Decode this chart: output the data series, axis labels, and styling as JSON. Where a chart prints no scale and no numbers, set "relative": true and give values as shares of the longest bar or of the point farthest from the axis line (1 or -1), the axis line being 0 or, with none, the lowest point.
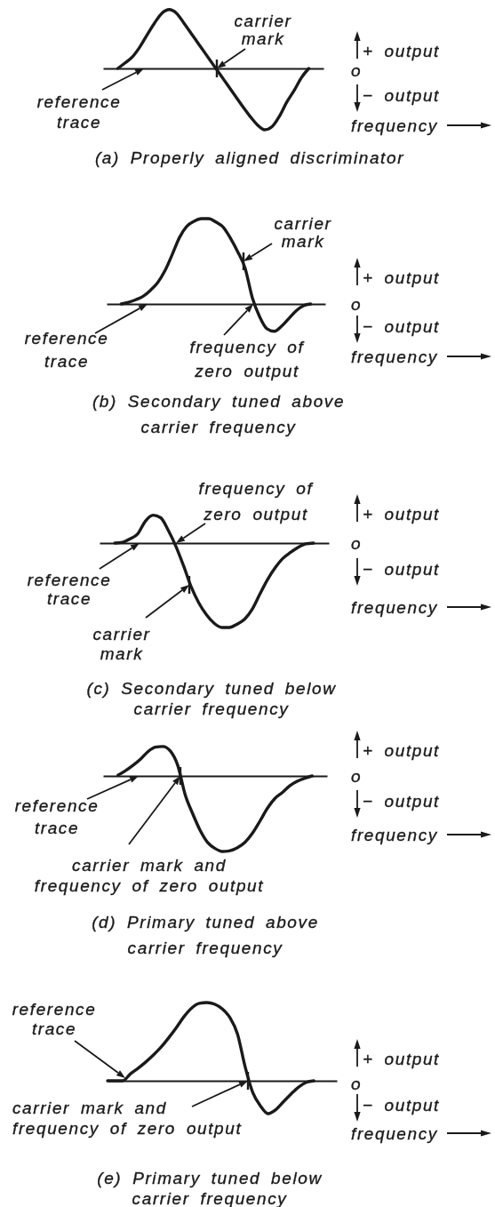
{
  "chart_data": [
    {
      "type": "line",
      "title": "(a) Properly aligned discriminator",
      "xlabel": "frequency",
      "relative": true,
      "color": "#1a1a1a",
      "categories": [
        null,
        null,
        null,
        null,
        null,
        null,
        null,
        null,
        null,
        null,
        null,
        null,
        null,
        null,
        null,
        null,
        null,
        null,
        null,
        null,
        null,
        null,
        null,
        null,
        null,
        null,
        null,
        null,
        null,
        null,
        null
      ],
      "values": [
        null,
        null,
        0,
        0.09,
        0.19,
        0.35,
        0.55,
        0.74,
        0.9,
        0.96,
        0.9,
        0.74,
        0.57,
        0.4,
        0.23,
        0.06,
        -0.11,
        -0.28,
        -0.45,
        -0.62,
        -0.78,
        -0.92,
        -1,
        -0.95,
        -0.78,
        -0.55,
        -0.36,
        -0.15,
        0,
        null,
        null
      ],
      "annotations": [
        "carrier mark",
        "reference trace",
        "+ output",
        "o",
        "− output"
      ]
    },
    {
      "type": "line",
      "title": "(b) Secondary tuned above carrier frequency",
      "xlabel": "frequency",
      "relative": true,
      "color": "#1a1a1a",
      "categories": [
        null,
        null,
        null,
        null,
        null,
        null,
        null,
        null,
        null,
        null,
        null,
        null,
        null,
        null,
        null,
        null,
        null,
        null,
        null,
        null,
        null,
        null,
        null,
        null,
        null,
        null,
        null,
        null,
        null,
        null,
        null
      ],
      "values": [
        null,
        null,
        0,
        0.02,
        0.05,
        0.09,
        0.16,
        0.25,
        0.39,
        0.58,
        0.78,
        0.91,
        0.97,
        1,
        1,
        0.96,
        0.9,
        0.77,
        0.61,
        0.42,
        0.07,
        -0.15,
        -0.29,
        -0.32,
        -0.26,
        -0.17,
        -0.08,
        -0.02,
        0,
        null,
        null
      ],
      "annotations": [
        "carrier mark",
        "reference trace",
        "frequency of zero output",
        "+ output",
        "o",
        "− output"
      ]
    },
    {
      "type": "line",
      "title": "(c) Secondary tuned below carrier frequency",
      "xlabel": "frequency",
      "relative": true,
      "color": "#1a1a1a",
      "categories": [
        null,
        null,
        null,
        null,
        null,
        null,
        null,
        null,
        null,
        null,
        null,
        null,
        null,
        null,
        null,
        null,
        null,
        null,
        null,
        null,
        null,
        null,
        null,
        null,
        null,
        null,
        null,
        null,
        null,
        null,
        null
      ],
      "values": [
        null,
        null,
        0,
        0.01,
        0.05,
        0.11,
        0.26,
        0.33,
        0.3,
        0.15,
        -0.04,
        -0.27,
        -0.52,
        -0.71,
        -0.85,
        -0.95,
        -1,
        -1,
        -0.96,
        -0.9,
        -0.78,
        -0.6,
        -0.43,
        -0.29,
        -0.18,
        -0.11,
        -0.05,
        -0.01,
        0,
        null,
        null
      ],
      "annotations": [
        "frequency of zero output",
        "reference trace",
        "carrier mark",
        "+ output",
        "o",
        "− output"
      ]
    },
    {
      "type": "line",
      "title": "(d) Primary tuned above carrier frequency",
      "xlabel": "frequency",
      "relative": true,
      "color": "#1a1a1a",
      "categories": [
        null,
        null,
        null,
        null,
        null,
        null,
        null,
        null,
        null,
        null,
        null,
        null,
        null,
        null,
        null,
        null,
        null,
        null,
        null,
        null,
        null,
        null,
        null,
        null,
        null,
        null,
        null,
        null,
        null,
        null,
        null
      ],
      "values": [
        null,
        null,
        0.01,
        0.07,
        0.14,
        0.22,
        0.32,
        0.38,
        0.39,
        0.33,
        0.14,
        -0.25,
        -0.5,
        -0.72,
        -0.88,
        -0.96,
        -1,
        -0.99,
        -0.95,
        -0.88,
        -0.76,
        -0.6,
        -0.43,
        -0.3,
        -0.22,
        -0.13,
        -0.07,
        -0.03,
        0,
        null,
        null
      ],
      "annotations": [
        "reference trace",
        "carrier mark and frequency of zero output",
        "+ output",
        "o",
        "− output"
      ]
    },
    {
      "type": "line",
      "title": "(e) Primary tuned below carrier frequency",
      "xlabel": "frequency",
      "relative": true,
      "color": "#1a1a1a",
      "categories": [
        null,
        null,
        null,
        null,
        null,
        null,
        null,
        null,
        null,
        null,
        null,
        null,
        null,
        null,
        null,
        null,
        null,
        null,
        null,
        null,
        null,
        null,
        null,
        null,
        null,
        null,
        null,
        null,
        null,
        null,
        null
      ],
      "values": [
        0,
        0,
        0,
        0.09,
        0.16,
        0.24,
        0.33,
        0.43,
        0.55,
        0.68,
        0.82,
        0.93,
        0.99,
        1,
        0.98,
        0.92,
        0.81,
        0.6,
        0.18,
        -0.15,
        -0.32,
        -0.42,
        -0.37,
        -0.27,
        -0.17,
        -0.08,
        -0.02,
        0,
        null,
        null,
        null
      ],
      "annotations": [
        "reference trace",
        "carrier mark and frequency of zero output",
        "+ output",
        "o",
        "− output"
      ]
    }
  ]
}
